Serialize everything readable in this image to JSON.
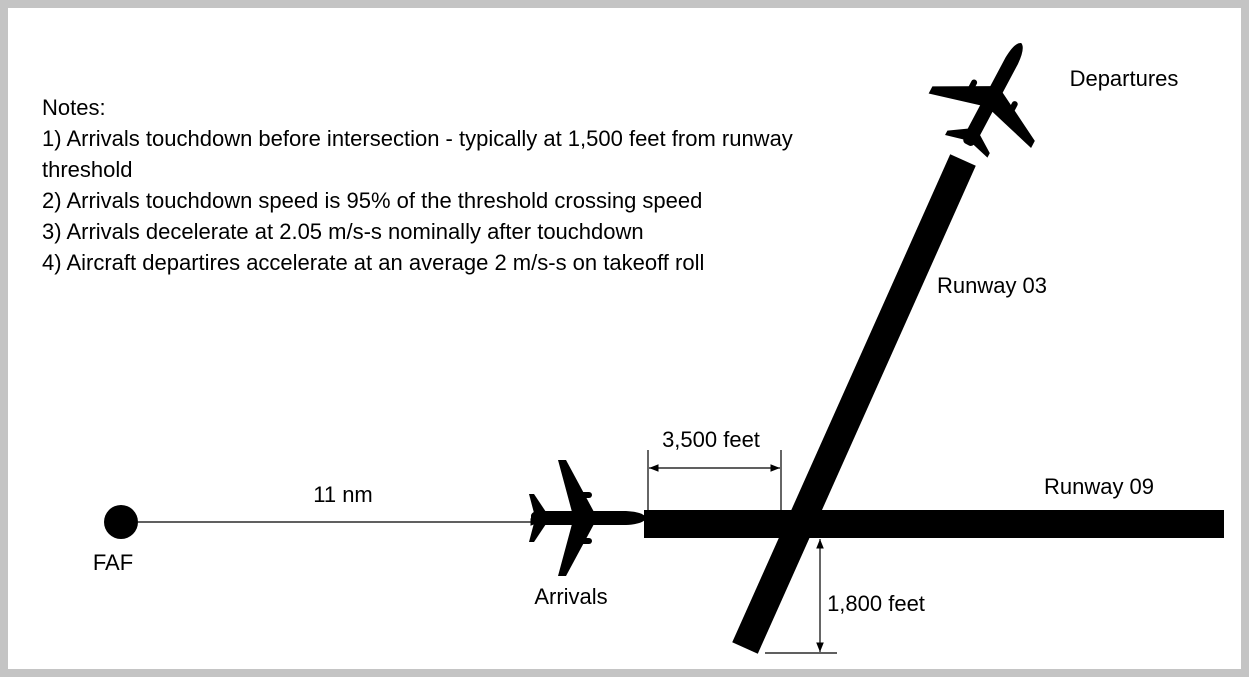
{
  "notes": {
    "title": "Notes:",
    "items": [
      "1) Arrivals touchdown before intersection - typically at 1,500 feet from runway threshold",
      "2) Arrivals touchdown speed is 95% of the threshold crossing speed",
      "3) Arrivals decelerate at 2.05 m/s-s nominally after touchdown",
      "4) Aircraft departires accelerate at an average 2 m/s-s on takeoff roll"
    ]
  },
  "labels": {
    "faf": "FAF",
    "approach_distance": "11 nm",
    "arrivals": "Arrivals",
    "departures": "Departures",
    "runway_03": "Runway 03",
    "runway_09": "Runway 09",
    "threshold_distance": "3,500 feet",
    "offset_distance": "1,800 feet"
  }
}
